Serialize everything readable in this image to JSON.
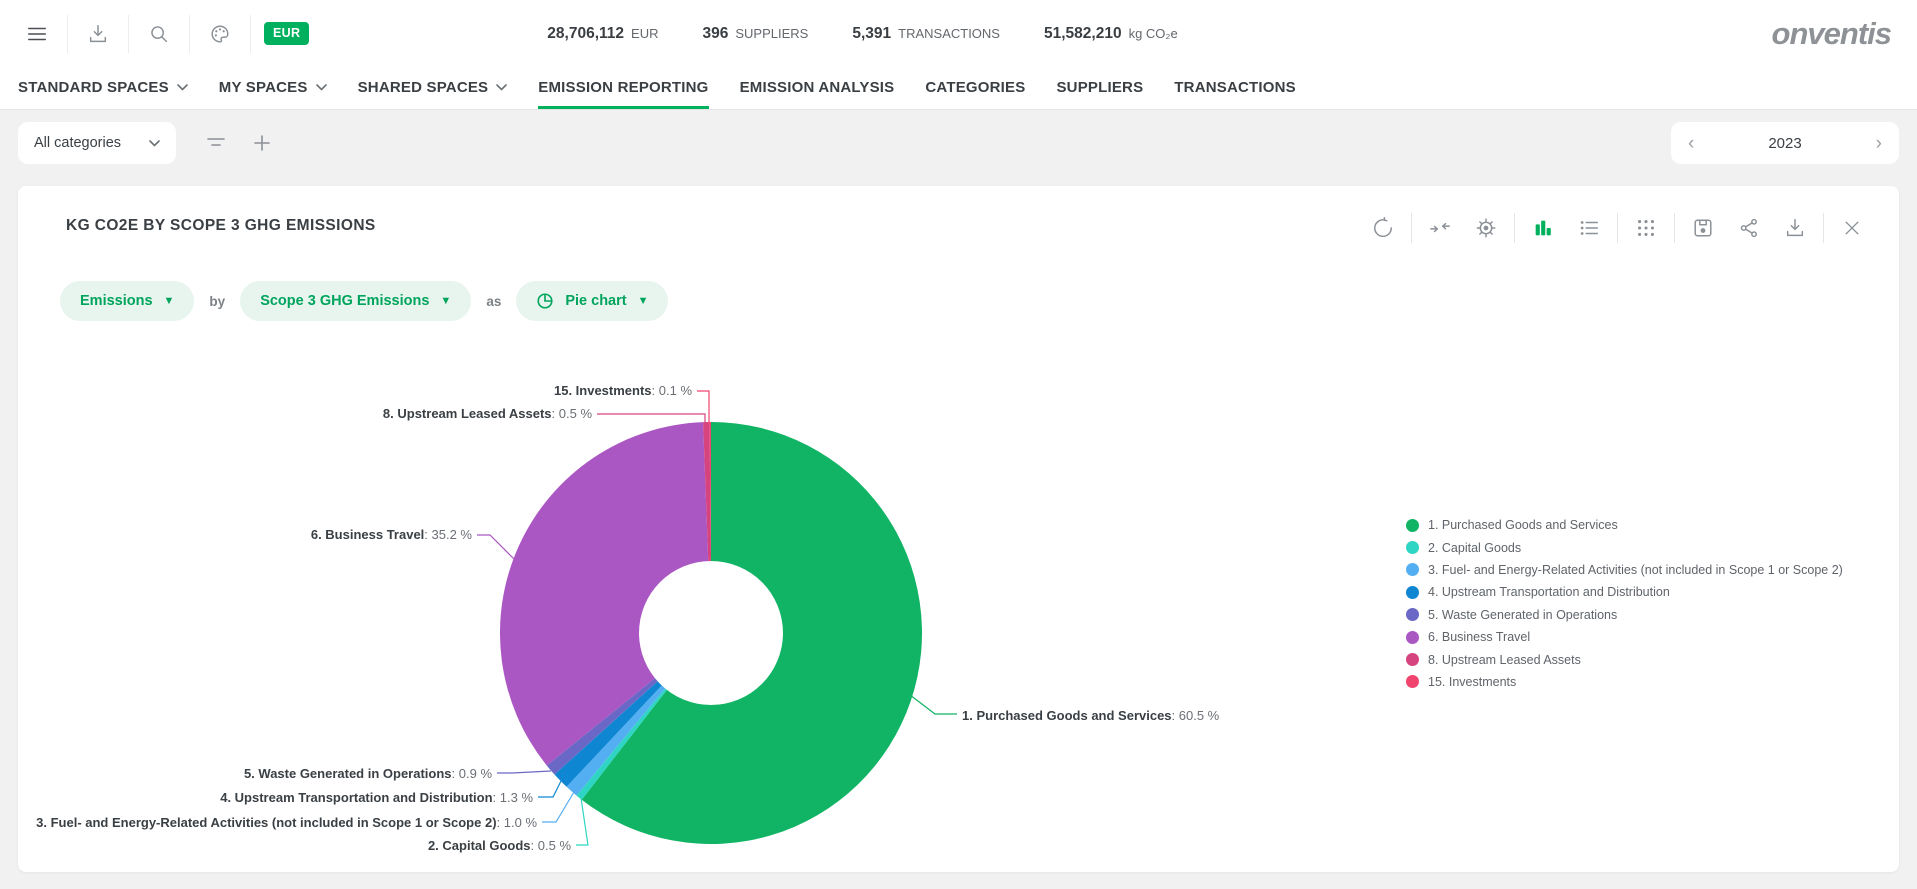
{
  "topbar": {
    "icons": [
      "menu-icon",
      "download-icon",
      "search-icon",
      "palette-icon"
    ],
    "currency_badge": "EUR",
    "stats": [
      {
        "value": "28,706,112",
        "label": "EUR"
      },
      {
        "value": "396",
        "label": "SUPPLIERS"
      },
      {
        "value": "5,391",
        "label": "TRANSACTIONS"
      },
      {
        "value": "51,582,210",
        "label": "kg CO₂e"
      }
    ],
    "logo": "onventis"
  },
  "nav": {
    "tabs": [
      {
        "label": "STANDARD SPACES",
        "dropdown": true,
        "active": false
      },
      {
        "label": "MY SPACES",
        "dropdown": true,
        "active": false
      },
      {
        "label": "SHARED SPACES",
        "dropdown": true,
        "active": false
      },
      {
        "label": "EMISSION REPORTING",
        "dropdown": false,
        "active": true
      },
      {
        "label": "EMISSION ANALYSIS",
        "dropdown": false,
        "active": false
      },
      {
        "label": "CATEGORIES",
        "dropdown": false,
        "active": false
      },
      {
        "label": "SUPPLIERS",
        "dropdown": false,
        "active": false
      },
      {
        "label": "TRANSACTIONS",
        "dropdown": false,
        "active": false
      }
    ]
  },
  "filterbar": {
    "category_dropdown": "All categories",
    "icons": [
      "filter-icon",
      "plus-icon"
    ],
    "year": "2023",
    "prev_arrow": "‹",
    "next_arrow": "›"
  },
  "card": {
    "title": "KG CO2E BY SCOPE 3 GHG EMISSIONS",
    "toolbar_icons": [
      "refresh-icon",
      "collapse-icon",
      "settings-icon",
      "bar-chart-icon",
      "list-icon",
      "grid-icon",
      "save-icon",
      "share-icon",
      "download-icon",
      "close-icon"
    ],
    "active_toolbar_icon": "bar-chart-icon",
    "query": {
      "metric": "Emissions",
      "by_label": "by",
      "dimension": "Scope 3 GHG Emissions",
      "as_label": "as",
      "chart_type": "Pie chart"
    }
  },
  "chart_data": {
    "type": "pie",
    "donut": true,
    "title": "KG CO2E BY SCOPE 3 GHG EMISSIONS",
    "unit": "%",
    "legend_position": "right",
    "slices": [
      {
        "name": "1. Purchased Goods and Services",
        "value": 60.5,
        "color": "#10b464"
      },
      {
        "name": "2. Capital Goods",
        "value": 0.5,
        "color": "#2fd5c4"
      },
      {
        "name": "3. Fuel- and Energy-Related Activities (not included in Scope 1 or Scope 2)",
        "value": 1.0,
        "color": "#54aef2"
      },
      {
        "name": "4. Upstream Transportation and Distribution",
        "value": 1.3,
        "color": "#0f86d2"
      },
      {
        "name": "5. Waste Generated in Operations",
        "value": 0.9,
        "color": "#6a67c6"
      },
      {
        "name": "6. Business Travel",
        "value": 35.2,
        "color": "#ab57c3"
      },
      {
        "name": "8. Upstream Leased Assets",
        "value": 0.5,
        "color": "#d6447f"
      },
      {
        "name": "15. Investments",
        "value": 0.1,
        "color": "#f0446e"
      }
    ]
  },
  "accent_colors": {
    "brand_green": "#00b05c",
    "pill_bg": "#e7f5ee",
    "pill_text": "#00a45c"
  }
}
